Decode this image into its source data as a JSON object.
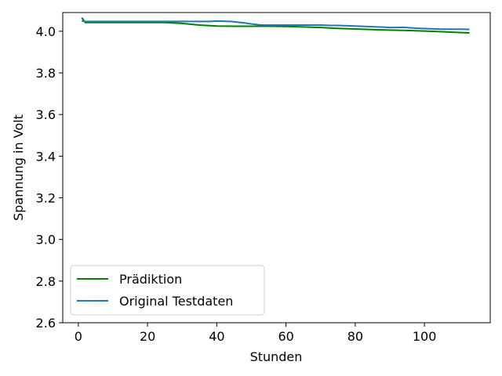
{
  "chart_data": {
    "type": "line",
    "xlabel": "Stunden",
    "ylabel": "Spannung in Volt",
    "xlim": [
      -4.5,
      119
    ],
    "ylim": [
      2.6,
      4.09
    ],
    "xticks": [
      "0",
      "20",
      "40",
      "60",
      "80",
      "100"
    ],
    "yticks": [
      "2.6",
      "2.8",
      "3.0",
      "3.2",
      "3.4",
      "3.6",
      "3.8",
      "4.0"
    ],
    "grid": false,
    "legend_position": "lower-left",
    "series": [
      {
        "name": "Prädiktion",
        "color": "#008000",
        "x": [
          1,
          2,
          5,
          10,
          15,
          20,
          25,
          30,
          35,
          40,
          45,
          50,
          55,
          60,
          65,
          70,
          75,
          80,
          85,
          90,
          95,
          100,
          105,
          110,
          113
        ],
        "y": [
          4.065,
          4.042,
          4.042,
          4.042,
          4.042,
          4.042,
          4.042,
          4.038,
          4.03,
          4.025,
          4.024,
          4.024,
          4.024,
          4.023,
          4.021,
          4.018,
          4.014,
          4.011,
          4.008,
          4.006,
          4.004,
          4.001,
          3.998,
          3.994,
          3.992
        ]
      },
      {
        "name": "Original Testdaten",
        "color": "#1f77b4",
        "x": [
          1,
          2,
          5,
          10,
          15,
          20,
          25,
          30,
          35,
          38,
          40,
          44,
          48,
          50,
          53,
          55,
          60,
          65,
          70,
          73,
          75,
          80,
          85,
          88,
          90,
          94,
          97,
          100,
          105,
          110,
          113
        ],
        "y": [
          4.05,
          4.047,
          4.047,
          4.047,
          4.047,
          4.047,
          4.047,
          4.047,
          4.047,
          4.047,
          4.049,
          4.047,
          4.04,
          4.035,
          4.03,
          4.03,
          4.03,
          4.03,
          4.03,
          4.028,
          4.028,
          4.025,
          4.022,
          4.02,
          4.018,
          4.019,
          4.015,
          4.013,
          4.01,
          4.01,
          4.009
        ]
      }
    ]
  }
}
